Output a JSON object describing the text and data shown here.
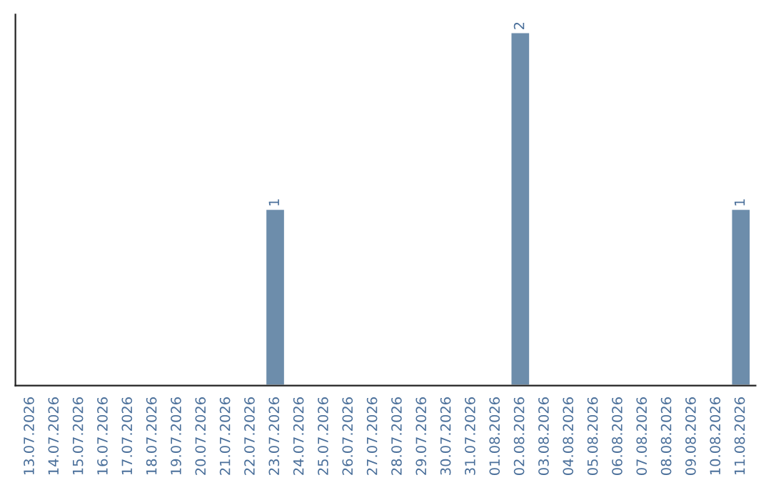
{
  "chart_data": {
    "type": "bar",
    "categories": [
      "13.07.2026",
      "14.07.2026",
      "15.07.2026",
      "16.07.2026",
      "17.07.2026",
      "18.07.2026",
      "19.07.2026",
      "20.07.2026",
      "21.07.2026",
      "22.07.2026",
      "23.07.2026",
      "24.07.2026",
      "25.07.2026",
      "26.07.2026",
      "27.07.2026",
      "28.07.2026",
      "29.07.2026",
      "30.07.2026",
      "31.07.2026",
      "01.08.2026",
      "02.08.2026",
      "03.08.2026",
      "04.08.2026",
      "05.08.2026",
      "06.08.2026",
      "07.08.2026",
      "08.08.2026",
      "09.08.2026",
      "10.08.2026",
      "11.08.2026"
    ],
    "values": [
      0,
      0,
      0,
      0,
      0,
      0,
      0,
      0,
      0,
      0,
      1,
      0,
      0,
      0,
      0,
      0,
      0,
      0,
      0,
      0,
      2,
      0,
      0,
      0,
      0,
      0,
      0,
      0,
      0,
      1
    ],
    "value_labels": [
      null,
      null,
      null,
      null,
      null,
      null,
      null,
      null,
      null,
      null,
      "1",
      null,
      null,
      null,
      null,
      null,
      null,
      null,
      null,
      null,
      "2",
      null,
      null,
      null,
      null,
      null,
      null,
      null,
      null,
      "1"
    ],
    "color": "#6d8dab",
    "ylim": [
      0,
      2.1
    ],
    "tick_labels": "x",
    "grid": false,
    "legend": false
  }
}
